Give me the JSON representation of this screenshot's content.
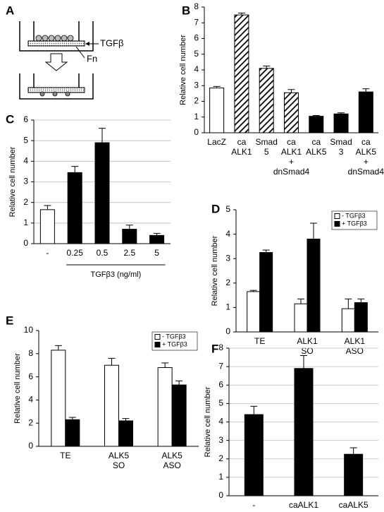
{
  "diagram": {
    "panel": "A",
    "labels": [
      "TGFβ",
      "Fn"
    ]
  },
  "chart_data": [
    {
      "type": "bar",
      "panel": "B",
      "ylabel": "Relative cell number",
      "categories": [
        [
          "LacZ"
        ],
        [
          "ca",
          "ALK1"
        ],
        [
          "Smad",
          "5"
        ],
        [
          "ca",
          "ALK1",
          "+",
          "dnSmad4"
        ],
        [
          "ca",
          "ALK5"
        ],
        [
          "Smad",
          "3"
        ],
        [
          "ca",
          "ALK5",
          "+",
          "dnSmad4"
        ]
      ],
      "series": [
        {
          "values": [
            2.85,
            7.5,
            4.1,
            2.55,
            1.05,
            1.2,
            2.6
          ],
          "errors": [
            0.1,
            0.12,
            0.15,
            0.2,
            0.05,
            0.07,
            0.2
          ],
          "bar_fills": [
            "#ffffff",
            "hatched",
            "hatched",
            "hatched",
            "#000000",
            "#000000",
            "#000000"
          ]
        }
      ],
      "ylim": [
        0,
        8
      ],
      "yticks": [
        0,
        1,
        2,
        3,
        4,
        5,
        6,
        7,
        8
      ],
      "grid": false
    },
    {
      "type": "bar",
      "panel": "C",
      "ylabel": "Relative cell number",
      "xlabel": "TGFβ3 (ng/ml)",
      "categories": [
        [
          "-"
        ],
        [
          "0.25"
        ],
        [
          "0.5"
        ],
        [
          "2.5"
        ],
        [
          "5"
        ]
      ],
      "series": [
        {
          "values": [
            1.65,
            3.45,
            4.9,
            0.7,
            0.4
          ],
          "errors": [
            0.2,
            0.3,
            0.7,
            0.2,
            0.1
          ],
          "bar_fills": [
            "#ffffff",
            "#000000",
            "#000000",
            "#000000",
            "#000000"
          ]
        }
      ],
      "ylim": [
        0,
        6
      ],
      "yticks": [
        0,
        1,
        2,
        3,
        4,
        5,
        6
      ],
      "grid": true
    },
    {
      "type": "bar",
      "panel": "D",
      "ylabel": "Relative cell number",
      "categories": [
        [
          "TE"
        ],
        [
          "ALK1",
          "SO"
        ],
        [
          "ALK1",
          "ASO"
        ]
      ],
      "series": [
        {
          "name": "- TGFβ3",
          "color": "#ffffff",
          "values": [
            1.65,
            1.15,
            0.95
          ],
          "errors": [
            0.05,
            0.2,
            0.4
          ]
        },
        {
          "name": "+ TGFβ3",
          "color": "#000000",
          "values": [
            3.25,
            3.8,
            1.2
          ],
          "errors": [
            0.1,
            0.65,
            0.15
          ]
        }
      ],
      "ylim": [
        0,
        5
      ],
      "yticks": [
        0,
        1,
        2,
        3,
        4,
        5
      ],
      "grid": false,
      "legend": "top-right"
    },
    {
      "type": "bar",
      "panel": "E",
      "ylabel": "Relative cell number",
      "categories": [
        [
          "TE"
        ],
        [
          "ALK5",
          "SO"
        ],
        [
          "ALK5",
          "ASO"
        ]
      ],
      "series": [
        {
          "name": "- TGFβ3",
          "color": "#ffffff",
          "values": [
            8.3,
            7.0,
            6.8
          ],
          "errors": [
            0.4,
            0.6,
            0.4
          ]
        },
        {
          "name": "+ TGFβ3",
          "color": "#000000",
          "values": [
            2.3,
            2.2,
            5.3
          ],
          "errors": [
            0.2,
            0.2,
            0.35
          ]
        }
      ],
      "ylim": [
        0,
        10
      ],
      "yticks": [
        0,
        2,
        4,
        6,
        8,
        10
      ],
      "grid": false,
      "legend": "top-right"
    },
    {
      "type": "bar",
      "panel": "F",
      "ylabel": "Relative cell number",
      "categories": [
        [
          "-"
        ],
        [
          "caALK1"
        ],
        [
          "caALK5"
        ]
      ],
      "series": [
        {
          "color": "#000000",
          "values": [
            4.4,
            6.9,
            2.25
          ],
          "errors": [
            0.45,
            0.7,
            0.35
          ]
        }
      ],
      "ylim": [
        0,
        8
      ],
      "yticks": [
        0,
        1,
        2,
        3,
        4,
        5,
        6,
        7,
        8
      ],
      "grid": true
    }
  ]
}
